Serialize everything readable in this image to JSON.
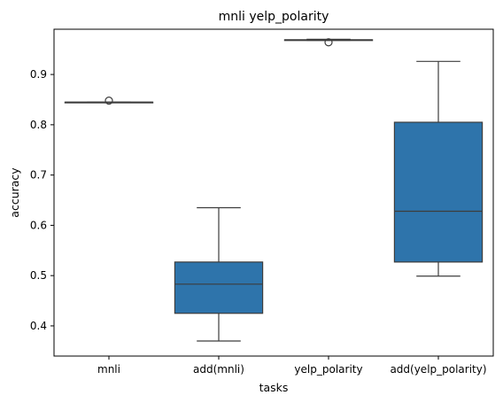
{
  "chart_data": {
    "type": "box",
    "title": "mnli yelp_polarity",
    "xlabel": "tasks",
    "ylabel": "accuracy",
    "ylim": [
      0.34,
      0.99
    ],
    "yticks": [
      0.4,
      0.5,
      0.6,
      0.7,
      0.8,
      0.9
    ],
    "ytick_labels": [
      "0.4",
      "0.5",
      "0.6",
      "0.7",
      "0.8",
      "0.9"
    ],
    "grid": false,
    "box_color": "#2e74ab",
    "line_color": "#3d3d3d",
    "categories": [
      "mnli",
      "add(mnli)",
      "yelp_polarity",
      "add(yelp_polarity)"
    ],
    "boxes": [
      {
        "whisker_low": 0.844,
        "q1": 0.844,
        "median": 0.845,
        "q3": 0.845,
        "whisker_high": 0.845,
        "outliers": [
          0.848
        ]
      },
      {
        "whisker_low": 0.37,
        "q1": 0.425,
        "median": 0.483,
        "q3": 0.527,
        "whisker_high": 0.635,
        "outliers": []
      },
      {
        "whisker_low": 0.968,
        "q1": 0.968,
        "median": 0.969,
        "q3": 0.969,
        "whisker_high": 0.97,
        "outliers": [
          0.964
        ]
      },
      {
        "whisker_low": 0.499,
        "q1": 0.527,
        "median": 0.628,
        "q3": 0.805,
        "whisker_high": 0.926,
        "outliers": []
      }
    ]
  }
}
